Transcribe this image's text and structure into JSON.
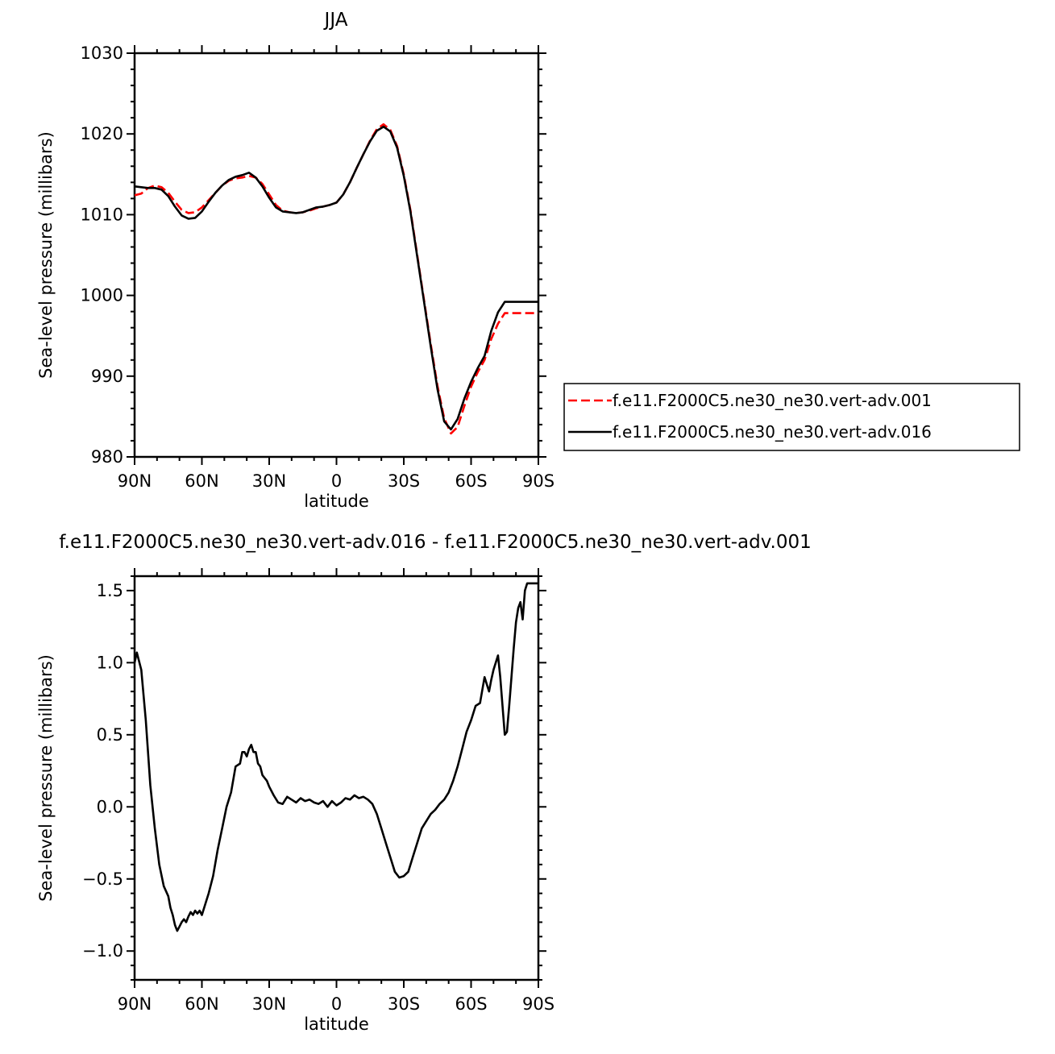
{
  "chart_data": [
    {
      "type": "line",
      "title": "JJA",
      "xlabel": "latitude",
      "ylabel": "Sea-level pressure (millibars)",
      "xlim": [
        90,
        -90
      ],
      "ylim": [
        980,
        1030
      ],
      "xticks": [
        90,
        60,
        30,
        0,
        -30,
        -60,
        -90
      ],
      "xtick_labels": [
        "90N",
        "60N",
        "30N",
        "0",
        "30S",
        "60S",
        "90S"
      ],
      "yticks": [
        980,
        990,
        1000,
        1010,
        1020,
        1030
      ],
      "ytick_labels": [
        "980",
        "990",
        "1000",
        "1010",
        "1020",
        "1030"
      ],
      "grid": false,
      "legend_position": "right",
      "series": [
        {
          "name": "f.e11.F2000C5.ne30_ne30.vert-adv.001",
          "color": "#ff0000",
          "dash": "dashed",
          "x": [
            90,
            87,
            84,
            81,
            78,
            75,
            72,
            69,
            66,
            63,
            60,
            57,
            54,
            51,
            48,
            45,
            42,
            39,
            36,
            33,
            30,
            27,
            24,
            21,
            18,
            15,
            12,
            9,
            6,
            3,
            0,
            -3,
            -6,
            -9,
            -12,
            -15,
            -18,
            -21,
            -24,
            -27,
            -30,
            -33,
            -36,
            -39,
            -42,
            -45,
            -48,
            -51,
            -54,
            -57,
            -60,
            -63,
            -66,
            -69,
            -72,
            -75,
            -78,
            -81,
            -84,
            -87,
            -90
          ],
          "values": [
            1012.4,
            1012.6,
            1013.3,
            1013.6,
            1013.4,
            1012.7,
            1011.6,
            1010.6,
            1010.2,
            1010.3,
            1010.9,
            1011.8,
            1012.7,
            1013.6,
            1014.2,
            1014.5,
            1014.6,
            1014.8,
            1014.6,
            1013.8,
            1012.5,
            1011.2,
            1010.5,
            1010.3,
            1010.2,
            1010.3,
            1010.5,
            1010.8,
            1011.0,
            1011.2,
            1011.5,
            1012.5,
            1014.0,
            1015.8,
            1017.5,
            1019.2,
            1020.6,
            1021.2,
            1020.5,
            1018.5,
            1015.0,
            1010.5,
            1005.0,
            999.5,
            994.0,
            988.8,
            984.8,
            982.9,
            983.7,
            986.3,
            988.7,
            990.5,
            992.0,
            994.6,
            996.5,
            997.8,
            997.8,
            997.8,
            997.8,
            997.8,
            997.8
          ]
        },
        {
          "name": "f.e11.F2000C5.ne30_ne30.vert-adv.016",
          "color": "#000000",
          "dash": "solid",
          "x": [
            90,
            87,
            84,
            81,
            78,
            75,
            72,
            69,
            66,
            63,
            60,
            57,
            54,
            51,
            48,
            45,
            42,
            39,
            36,
            33,
            30,
            27,
            24,
            21,
            18,
            15,
            12,
            9,
            6,
            3,
            0,
            -3,
            -6,
            -9,
            -12,
            -15,
            -18,
            -21,
            -24,
            -27,
            -30,
            -33,
            -36,
            -39,
            -42,
            -45,
            -48,
            -51,
            -54,
            -57,
            -60,
            -63,
            -66,
            -69,
            -72,
            -75,
            -78,
            -81,
            -84,
            -87,
            -90
          ],
          "values": [
            1013.5,
            1013.4,
            1013.3,
            1013.3,
            1013.1,
            1012.3,
            1011.0,
            1009.9,
            1009.5,
            1009.6,
            1010.4,
            1011.6,
            1012.7,
            1013.6,
            1014.3,
            1014.7,
            1014.9,
            1015.2,
            1014.6,
            1013.5,
            1012.1,
            1010.9,
            1010.4,
            1010.3,
            1010.2,
            1010.3,
            1010.6,
            1010.9,
            1011.0,
            1011.2,
            1011.5,
            1012.5,
            1014.0,
            1015.8,
            1017.5,
            1019.1,
            1020.4,
            1020.9,
            1020.3,
            1018.3,
            1014.8,
            1010.3,
            1004.8,
            999.3,
            993.7,
            988.4,
            984.4,
            983.4,
            984.7,
            987.2,
            989.3,
            991.0,
            992.5,
            995.6,
            997.9,
            999.2,
            999.2,
            999.2,
            999.2,
            999.2,
            999.2
          ]
        }
      ]
    },
    {
      "type": "line",
      "title": "f.e11.F2000C5.ne30_ne30.vert-adv.016 - f.e11.F2000C5.ne30_ne30.vert-adv.001",
      "xlabel": "latitude",
      "ylabel": "Sea-level pressure (millibars)",
      "xlim": [
        90,
        -90
      ],
      "ylim": [
        -1.2,
        1.6
      ],
      "xticks": [
        90,
        60,
        30,
        0,
        -30,
        -60,
        -90
      ],
      "xtick_labels": [
        "90N",
        "60N",
        "30N",
        "0",
        "30S",
        "60S",
        "90S"
      ],
      "yticks": [
        -1.0,
        -0.5,
        0.0,
        0.5,
        1.0,
        1.5
      ],
      "ytick_labels": [
        "−1.0",
        "−0.5",
        "0.0",
        "0.5",
        "1.0",
        "1.5"
      ],
      "grid": false,
      "series": [
        {
          "color": "#000000",
          "dash": "solid",
          "x": [
            90,
            89,
            87,
            85,
            83,
            81,
            79,
            77,
            75,
            74,
            73,
            72,
            71,
            70,
            69,
            68,
            67,
            66,
            65,
            64,
            63,
            62,
            61,
            60,
            59,
            57,
            55,
            53,
            51,
            49,
            47,
            45,
            43,
            42,
            41,
            40,
            39,
            38,
            37,
            36,
            35,
            34,
            33,
            32,
            31,
            30,
            28,
            26,
            24,
            22,
            20,
            18,
            16,
            14,
            12,
            10,
            8,
            6,
            4,
            2,
            0,
            -2,
            -4,
            -6,
            -8,
            -10,
            -12,
            -14,
            -16,
            -18,
            -20,
            -22,
            -24,
            -26,
            -28,
            -30,
            -32,
            -34,
            -36,
            -38,
            -40,
            -42,
            -44,
            -46,
            -48,
            -50,
            -52,
            -54,
            -56,
            -58,
            -60,
            -62,
            -64,
            -66,
            -67,
            -68,
            -69,
            -70,
            -71,
            -72,
            -73,
            -74,
            -75,
            -76,
            -77,
            -78,
            -79,
            -80,
            -81,
            -82,
            -83,
            -84,
            -85,
            -86,
            -87,
            -88,
            -89,
            -90
          ],
          "values": [
            1.0,
            1.07,
            0.95,
            0.6,
            0.15,
            -0.15,
            -0.4,
            -0.55,
            -0.62,
            -0.7,
            -0.75,
            -0.82,
            -0.86,
            -0.83,
            -0.8,
            -0.78,
            -0.8,
            -0.76,
            -0.73,
            -0.75,
            -0.72,
            -0.74,
            -0.72,
            -0.75,
            -0.7,
            -0.6,
            -0.48,
            -0.3,
            -0.15,
            0.0,
            0.1,
            0.28,
            0.3,
            0.38,
            0.38,
            0.35,
            0.4,
            0.43,
            0.38,
            0.38,
            0.3,
            0.28,
            0.22,
            0.2,
            0.18,
            0.14,
            0.08,
            0.03,
            0.02,
            0.07,
            0.05,
            0.03,
            0.06,
            0.04,
            0.05,
            0.03,
            0.02,
            0.04,
            0.0,
            0.04,
            0.01,
            0.03,
            0.06,
            0.05,
            0.08,
            0.06,
            0.07,
            0.05,
            0.02,
            -0.05,
            -0.15,
            -0.25,
            -0.35,
            -0.45,
            -0.49,
            -0.48,
            -0.45,
            -0.35,
            -0.25,
            -0.15,
            -0.1,
            -0.05,
            -0.02,
            0.02,
            0.05,
            0.1,
            0.18,
            0.28,
            0.4,
            0.52,
            0.6,
            0.7,
            0.72,
            0.9,
            0.85,
            0.8,
            0.88,
            0.95,
            1.0,
            1.05,
            0.9,
            0.7,
            0.5,
            0.52,
            0.7,
            0.9,
            1.1,
            1.28,
            1.38,
            1.42,
            1.3,
            1.5,
            1.55,
            1.55,
            1.55,
            1.55,
            1.55,
            1.55
          ]
        }
      ]
    }
  ]
}
